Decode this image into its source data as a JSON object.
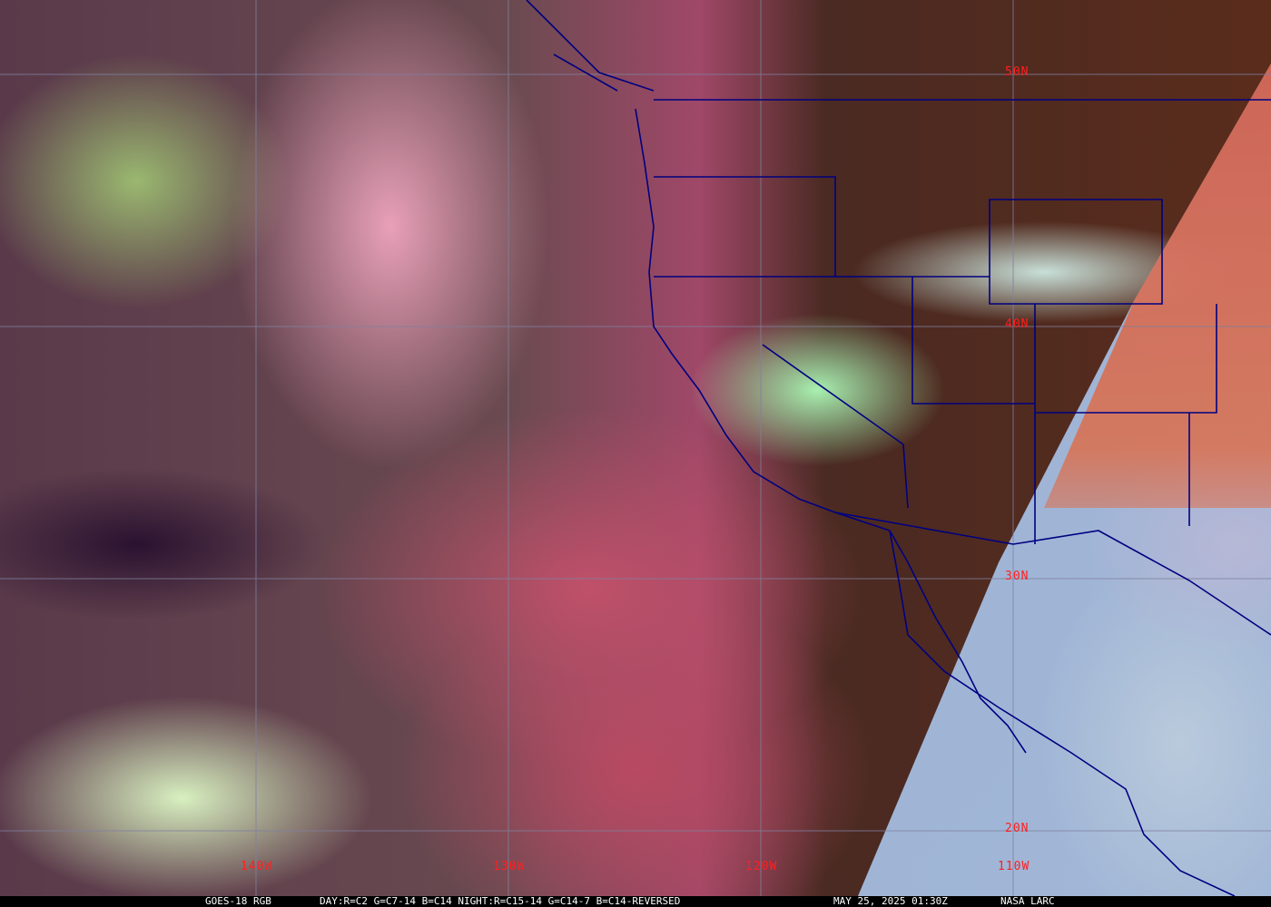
{
  "map": {
    "lat_labels": [
      "50N",
      "40N",
      "30N",
      "20N"
    ],
    "lon_labels": [
      "140W",
      "130W",
      "120W",
      "110W"
    ],
    "grid_color": "#8080a0",
    "label_color": "#ff2020",
    "boundary_color": "#000080"
  },
  "caption": {
    "product": "GOES-18 RGB",
    "recipe": "DAY:R=C2 G=C7-14 B=C14 NIGHT:R=C15-14 G=C14-7 B=C14-REVERSED",
    "datetime": "MAY 25, 2025 01:30Z",
    "source": "NASA LARC"
  }
}
